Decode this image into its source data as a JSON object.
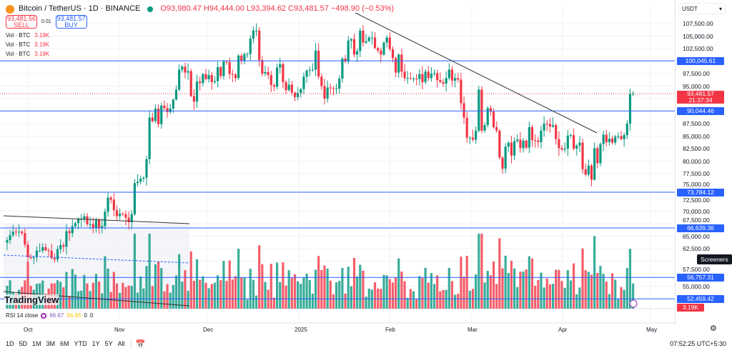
{
  "header": {
    "symbol": "Bitcoin / TetherUS · 1D · BINANCE",
    "open": "O93,980.47",
    "high": "H94,444.00",
    "low": "L93,394.62",
    "close": "C93,481.57",
    "change": "−498.90 (−0.53%)"
  },
  "trade": {
    "sell_price": "93,481.56",
    "sell_label": "SELL",
    "spread": "0.01",
    "buy_price": "93,481.57",
    "buy_label": "BUY"
  },
  "volume_legends": [
    {
      "label": "Vol · BTC",
      "value": "3.19K"
    },
    {
      "label": "Vol · BTC",
      "value": "3.19K"
    },
    {
      "label": "Vol · BTC",
      "value": "3.19K"
    }
  ],
  "price_axis": {
    "currency": "USDT",
    "ticks": [
      "107,500.00",
      "105,000.00",
      "102,500.00",
      "97,500.00",
      "95,000.00",
      "87,500.00",
      "85,000.00",
      "82,500.00",
      "80,000.00",
      "77,500.00",
      "75,000.00",
      "72,500.00",
      "70,000.00",
      "67,500.00",
      "65,000.00",
      "62,500.00",
      "57,500.00",
      "55,000.00"
    ],
    "last_price": "93,481.57",
    "countdown": "21:37:34",
    "volume_label": "3.19K",
    "screeners": "Screeners"
  },
  "levels": [
    {
      "value": 100045.61,
      "label": "100,045.61"
    },
    {
      "value": 90044.46,
      "label": "90,044.46"
    },
    {
      "value": 73784.12,
      "label": "73,784.12"
    },
    {
      "value": 66639.36,
      "label": "66,639.36"
    },
    {
      "value": 56757.31,
      "label": "56,757.31"
    },
    {
      "value": 52459.42,
      "label": "52,459.42"
    }
  ],
  "colors": {
    "up": "#089981",
    "down": "#f23645",
    "level": "#2962ff"
  },
  "time_axis": [
    "Oct",
    "Nov",
    "Dec",
    "2025",
    "Feb",
    "Mar",
    "Apr",
    "May"
  ],
  "rsi": {
    "label": "RSI 14 close",
    "value": "66.67",
    "ma": "56.85",
    "a": "0",
    "b": "0"
  },
  "branding": "TradingView",
  "toolbar": {
    "ranges": [
      "1D",
      "5D",
      "1M",
      "3M",
      "6M",
      "YTD",
      "1Y",
      "5Y",
      "All"
    ],
    "clock": "07:52:25 UTC+5:30"
  },
  "chart_data": {
    "type": "candlestick",
    "start": "Sep 24",
    "unit": "k USDT daily close",
    "current": 93481.57,
    "closes": [
      64.2,
      65.2,
      65.9,
      65.8,
      65.9,
      65.6,
      63.3,
      60.8,
      60.6,
      60.8,
      62.1,
      62.1,
      62.8,
      62.2,
      62.1,
      60.6,
      60.3,
      62.4,
      63.2,
      62.9,
      66.0,
      65.6,
      67.0,
      67.6,
      68.4,
      68.4,
      69.0,
      67.4,
      67.4,
      66.7,
      68.2,
      66.6,
      67.0,
      69.9,
      72.7,
      72.3,
      70.2,
      69.0,
      69.5,
      69.4,
      68.7,
      67.8,
      69.4,
      75.6,
      75.9,
      76.5,
      76.7,
      80.4,
      88.7,
      88.0,
      90.5,
      87.4,
      91.1,
      90.6,
      89.8,
      90.5,
      92.3,
      94.3,
      98.3,
      98.9,
      97.7,
      98.0,
      93.0,
      91.9,
      95.9,
      95.6,
      97.4,
      96.4,
      97.2,
      95.8,
      96.0,
      98.8,
      97.0,
      99.9,
      99.8,
      97.4,
      97.3,
      96.6,
      101.1,
      100.0,
      101.4,
      101.4,
      104.5,
      106.1,
      106.1,
      100.2,
      97.5,
      97.8,
      97.2,
      95.2,
      94.9,
      98.7,
      99.4,
      95.8,
      94.2,
      95.3,
      93.7,
      92.8,
      93.6,
      94.4,
      96.9,
      98.1,
      98.2,
      98.3,
      102.1,
      96.9,
      95.0,
      92.5,
      94.7,
      94.6,
      94.5,
      94.5,
      96.5,
      100.5,
      99.9,
      104.1,
      104.4,
      101.3,
      102.0,
      106.1,
      103.7,
      104.0,
      104.7,
      104.7,
      102.6,
      102.1,
      101.3,
      103.7,
      104.7,
      102.4,
      100.6,
      97.7,
      101.3,
      97.9,
      96.6,
      96.6,
      96.5,
      96.5,
      96.4,
      97.4,
      95.8,
      97.9,
      96.6,
      97.5,
      97.6,
      96.2,
      95.8,
      95.5,
      96.6,
      98.3,
      96.1,
      96.6,
      96.3,
      91.6,
      88.7,
      84.7,
      84.7,
      84.3,
      86.1,
      94.3,
      86.1,
      87.2,
      90.6,
      89.9,
      86.8,
      86.1,
      80.7,
      78.5,
      82.9,
      83.7,
      81.1,
      84.0,
      84.3,
      82.6,
      84.1,
      82.7,
      86.8,
      84.2,
      84.1,
      83.8,
      86.1,
      87.5,
      87.4,
      86.9,
      87.2,
      84.4,
      82.6,
      82.3,
      82.5,
      85.1,
      85.2,
      82.5,
      83.1,
      83.7,
      78.4,
      77.3,
      79.1,
      76.3,
      82.6,
      79.6,
      83.4,
      85.3,
      83.8,
      84.5,
      83.7,
      84.9,
      85.0,
      84.4,
      85.2,
      87.5,
      93.4,
      93.5
    ]
  }
}
